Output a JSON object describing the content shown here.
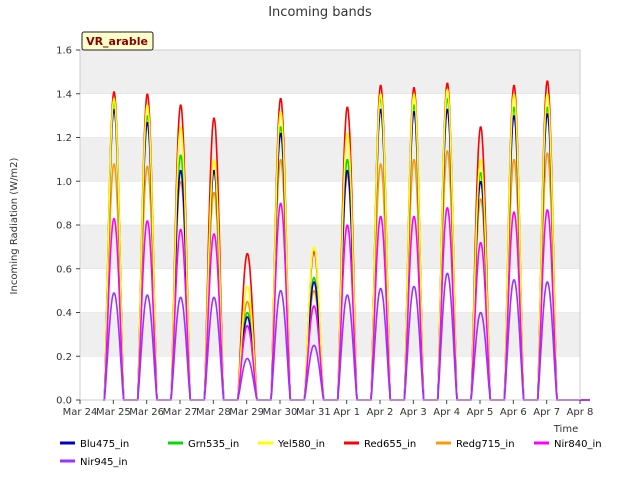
{
  "chart_data": {
    "type": "line",
    "title": "Incoming bands",
    "xlabel": "Time",
    "ylabel": "Incoming Radiation (W/m2)",
    "ylim": [
      0,
      1.6
    ],
    "yticks": [
      "0.0",
      "0.2",
      "0.4",
      "0.6",
      "0.8",
      "1.0",
      "1.2",
      "1.4",
      "1.6"
    ],
    "xlim": [
      0,
      15
    ],
    "xticks": [
      "Mar 24",
      "Mar 25",
      "Mar 26",
      "Mar 27",
      "Mar 28",
      "Mar 29",
      "Mar 30",
      "Mar 31",
      "Apr 1",
      "Apr 2",
      "Apr 3",
      "Apr 4",
      "Apr 5",
      "Apr 6",
      "Apr 7",
      "Apr 8"
    ],
    "grid": "horizontal bands",
    "legend_position": "bottom",
    "site_badge": "VR_arable",
    "series": [
      {
        "name": "Blu475_in",
        "color": "#0000cc",
        "values": [
          1.33,
          1.27,
          1.05,
          1.05,
          0.38,
          1.22,
          0.54,
          1.05,
          1.33,
          1.32,
          1.33,
          1.0,
          1.3,
          1.31
        ]
      },
      {
        "name": "Grn535_in",
        "color": "#00dd00",
        "values": [
          1.36,
          1.3,
          1.12,
          1.05,
          0.4,
          1.25,
          0.56,
          1.1,
          1.38,
          1.35,
          1.38,
          1.04,
          1.34,
          1.34
        ]
      },
      {
        "name": "Yel580_in",
        "color": "#ffff00",
        "values": [
          1.38,
          1.35,
          1.25,
          1.1,
          0.52,
          1.32,
          0.7,
          1.22,
          1.4,
          1.4,
          1.42,
          1.1,
          1.4,
          1.4
        ]
      },
      {
        "name": "Red655_in",
        "color": "#ff0000",
        "values": [
          1.41,
          1.4,
          1.35,
          1.29,
          0.67,
          1.38,
          0.68,
          1.34,
          1.44,
          1.43,
          1.45,
          1.25,
          1.44,
          1.46
        ]
      },
      {
        "name": "Redg715_in",
        "color": "#ff9900",
        "values": [
          1.08,
          1.07,
          1.0,
          0.95,
          0.45,
          1.1,
          0.5,
          1.03,
          1.08,
          1.1,
          1.14,
          0.92,
          1.1,
          1.13
        ]
      },
      {
        "name": "Nir840_in",
        "color": "#ff00ff",
        "values": [
          0.83,
          0.82,
          0.78,
          0.76,
          0.34,
          0.9,
          0.43,
          0.8,
          0.84,
          0.84,
          0.88,
          0.72,
          0.86,
          0.87
        ]
      },
      {
        "name": "Nir945_in",
        "color": "#9933ff",
        "values": [
          0.49,
          0.48,
          0.47,
          0.47,
          0.19,
          0.5,
          0.25,
          0.48,
          0.51,
          0.52,
          0.58,
          0.4,
          0.55,
          0.54
        ]
      }
    ]
  }
}
